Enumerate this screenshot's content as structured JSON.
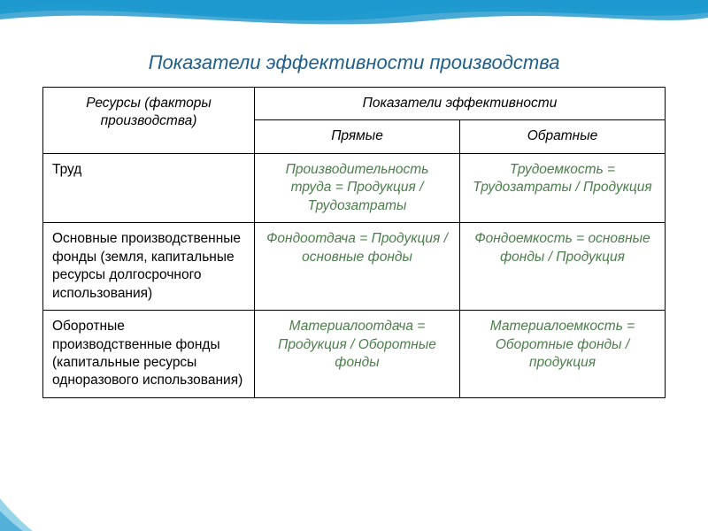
{
  "colors": {
    "title": "#1f5f8b",
    "indicator": "#4b7e4b",
    "border": "#000000",
    "wave_top": "#0d8ec7",
    "wave_mid": "#3bb6e3",
    "wave_light": "#a9e0f2",
    "bg": "#ffffff",
    "corner": "#55b9dc"
  },
  "fonts": {
    "title_size": 22,
    "cell_size": 15.5
  },
  "title": "Показатели эффективности производства",
  "table": {
    "col_widths_pct": [
      34,
      33,
      33
    ],
    "header": {
      "resources": "Ресурсы (факторы производства)",
      "indicators": "Показатели эффективности",
      "direct": "Прямые",
      "inverse": "Обратные"
    },
    "rows": [
      {
        "resource": "Труд",
        "direct": "Производительность труда = Продукция / Трудозатраты",
        "inverse": "Трудоемкость = Трудозатраты / Продукция"
      },
      {
        "resource": "Основные производственные фонды (земля, капитальные ресурсы долгосрочного использования)",
        "direct": "Фондоотдача = Продукция / основные фонды",
        "inverse": "Фондоемкость = основные фонды / Продукция"
      },
      {
        "resource": "Оборотные производственные фонды (капитальные ресурсы одноразового использования)",
        "direct": "Материалоотдача = Продукция / Оборотные фонды",
        "inverse": "Материалоемкость = Оборотные фонды / продукция"
      }
    ]
  }
}
